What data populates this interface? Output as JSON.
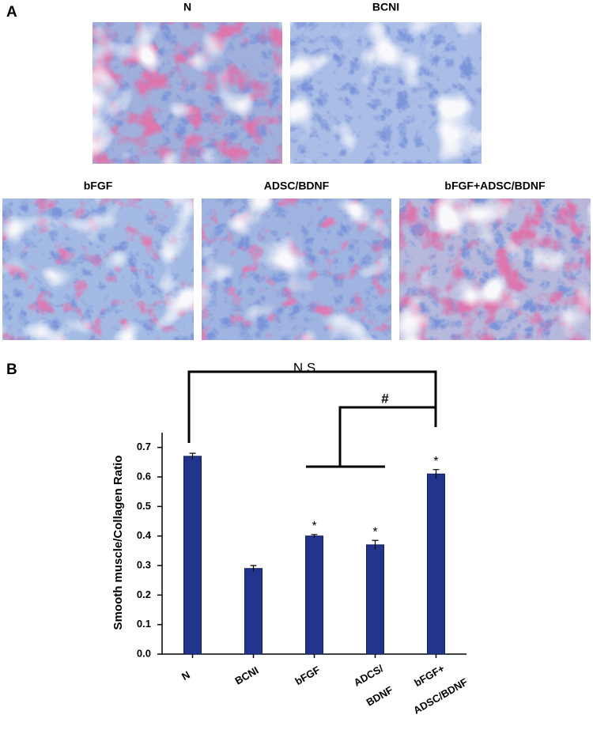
{
  "panel_a": {
    "label": "A",
    "images": [
      {
        "title": "N"
      },
      {
        "title": "BCNI"
      },
      {
        "title": "bFGF"
      },
      {
        "title": "ADSC/BDNF"
      },
      {
        "title": "bFGF+ADSC/BDNF"
      }
    ]
  },
  "panel_b_label": "B",
  "chart_data": {
    "type": "bar",
    "y_label": "Smooth muscle/Collagen Ratio",
    "categories": [
      [
        "N"
      ],
      [
        "BCNI"
      ],
      [
        "bFGF"
      ],
      [
        "ADCS/",
        "BDNF"
      ],
      [
        "bFGF+",
        "ADSC/BDNF"
      ]
    ],
    "values": [
      0.67,
      0.29,
      0.4,
      0.37,
      0.61
    ],
    "errors": [
      0.01,
      0.01,
      0.005,
      0.015,
      0.015
    ],
    "color": "#22348c",
    "ylim": [
      0,
      0.75
    ],
    "yticks": [
      {
        "value": 0,
        "label": "0.0"
      },
      0.1,
      0.2,
      0.3,
      0.4,
      0.5,
      0.6,
      0.7
    ],
    "stars": [
      "*",
      "*",
      "*"
    ],
    "annotations": {
      "ns": "N.S",
      "hash": "#"
    }
  }
}
